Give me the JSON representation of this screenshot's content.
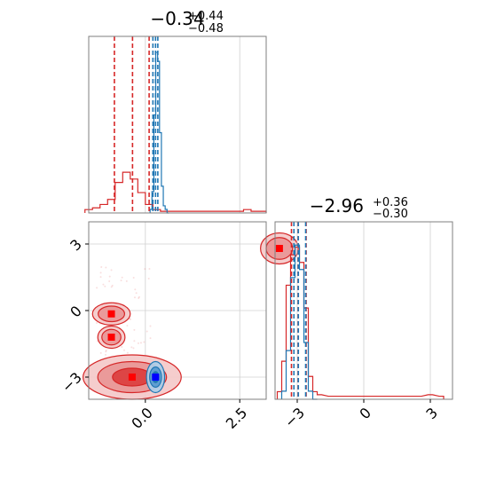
{
  "chart_data": [
    {
      "type": "histogram",
      "panel": "marginal-param-1",
      "title": {
        "median": "−0.34",
        "plus": "+0.44",
        "minus": "−0.48"
      },
      "xlim": [
        -1.5,
        3.2
      ],
      "grid": true,
      "series": [
        {
          "name": "",
          "color": "#d62728",
          "x": [
            -1.5,
            -1.3,
            -1.1,
            -0.9,
            -0.7,
            -0.5,
            -0.3,
            -0.1,
            0.1,
            0.3,
            0.5,
            0.7,
            0.9,
            1.1,
            1.3,
            1.5,
            1.7,
            1.9,
            2.1,
            2.3,
            2.5,
            2.7,
            2.9,
            3.1
          ],
          "values": [
            0.02,
            0.03,
            0.05,
            0.08,
            0.18,
            0.24,
            0.2,
            0.12,
            0.05,
            0.02,
            0.01,
            0.01,
            0.01,
            0.01,
            0.01,
            0.01,
            0.01,
            0.01,
            0.01,
            0.01,
            0.01,
            0.02,
            0.01,
            0.01
          ],
          "quantiles": [
            -0.82,
            -0.34,
            0.1
          ]
        },
        {
          "name": "",
          "color": "#1f77b4",
          "x": [
            0.15,
            0.2,
            0.25,
            0.3,
            0.35,
            0.4,
            0.45,
            0.5,
            0.55,
            0.6
          ],
          "values": [
            0.02,
            0.12,
            0.55,
            0.9,
            0.85,
            0.45,
            0.15,
            0.04,
            0.02,
            0.0
          ],
          "quantiles": [
            0.2,
            0.27,
            0.33
          ]
        }
      ]
    },
    {
      "type": "contour",
      "panel": "joint-param-1-param-2",
      "xlim": [
        -1.5,
        3.2
      ],
      "ylim": [
        -4.0,
        4.0
      ],
      "xticks": [
        "0.0",
        "2.5"
      ],
      "xtick_values": [
        0.0,
        2.5
      ],
      "yticks": [
        "−3",
        "0",
        "3"
      ],
      "ytick_values": [
        -3,
        0,
        3
      ],
      "grid": true,
      "series": [
        {
          "name": "",
          "color": "#d62728",
          "modes": [
            {
              "x": -0.35,
              "y": -3.0,
              "sx": 0.65,
              "sy": 0.5,
              "weight": 1.0
            },
            {
              "x": -0.9,
              "y": -0.15,
              "sx": 0.25,
              "sy": 0.25,
              "weight": 0.4
            },
            {
              "x": -0.9,
              "y": -1.2,
              "sx": 0.18,
              "sy": 0.25,
              "weight": 0.25
            },
            {
              "x": 3.55,
              "y": 2.8,
              "sx": 0.25,
              "sy": 0.35,
              "weight": 0.45
            }
          ]
        },
        {
          "name": "",
          "color": "#1f77b4",
          "modes": [
            {
              "x": 0.27,
              "y": -3.0,
              "sx": 0.12,
              "sy": 0.35,
              "weight": 1.0
            }
          ]
        }
      ]
    },
    {
      "type": "histogram",
      "panel": "marginal-param-2",
      "title": {
        "median": "−2.96",
        "plus": "+0.36",
        "minus": "−0.30"
      },
      "xlim": [
        -4.0,
        4.0
      ],
      "xticks": [
        "−3",
        "0",
        "3"
      ],
      "xtick_values": [
        -3,
        0,
        3
      ],
      "grid": true,
      "series": [
        {
          "name": "",
          "color": "#d62728",
          "x": [
            -3.8,
            -3.6,
            -3.4,
            -3.2,
            -3.0,
            -2.8,
            -2.6,
            -2.4,
            -2.2,
            -2.0,
            -1.5,
            -1.0,
            -0.5,
            0.0,
            0.5,
            1.0,
            1.5,
            2.0,
            2.5,
            3.0,
            3.5
          ],
          "values": [
            0.05,
            0.25,
            0.75,
            0.95,
            1.0,
            0.9,
            0.6,
            0.15,
            0.05,
            0.03,
            0.02,
            0.02,
            0.02,
            0.02,
            0.02,
            0.02,
            0.02,
            0.02,
            0.02,
            0.03,
            0.02
          ],
          "quantiles": [
            -3.26,
            -2.96,
            -2.6
          ]
        },
        {
          "name": "",
          "color": "#1f77b4",
          "x": [
            -3.6,
            -3.4,
            -3.2,
            -3.0,
            -2.8,
            -2.6,
            -2.4,
            -2.2
          ],
          "values": [
            0.05,
            0.3,
            0.75,
            0.95,
            0.8,
            0.35,
            0.05,
            0.0
          ],
          "quantiles": [
            -3.15,
            -2.95,
            -2.62
          ]
        }
      ]
    }
  ]
}
